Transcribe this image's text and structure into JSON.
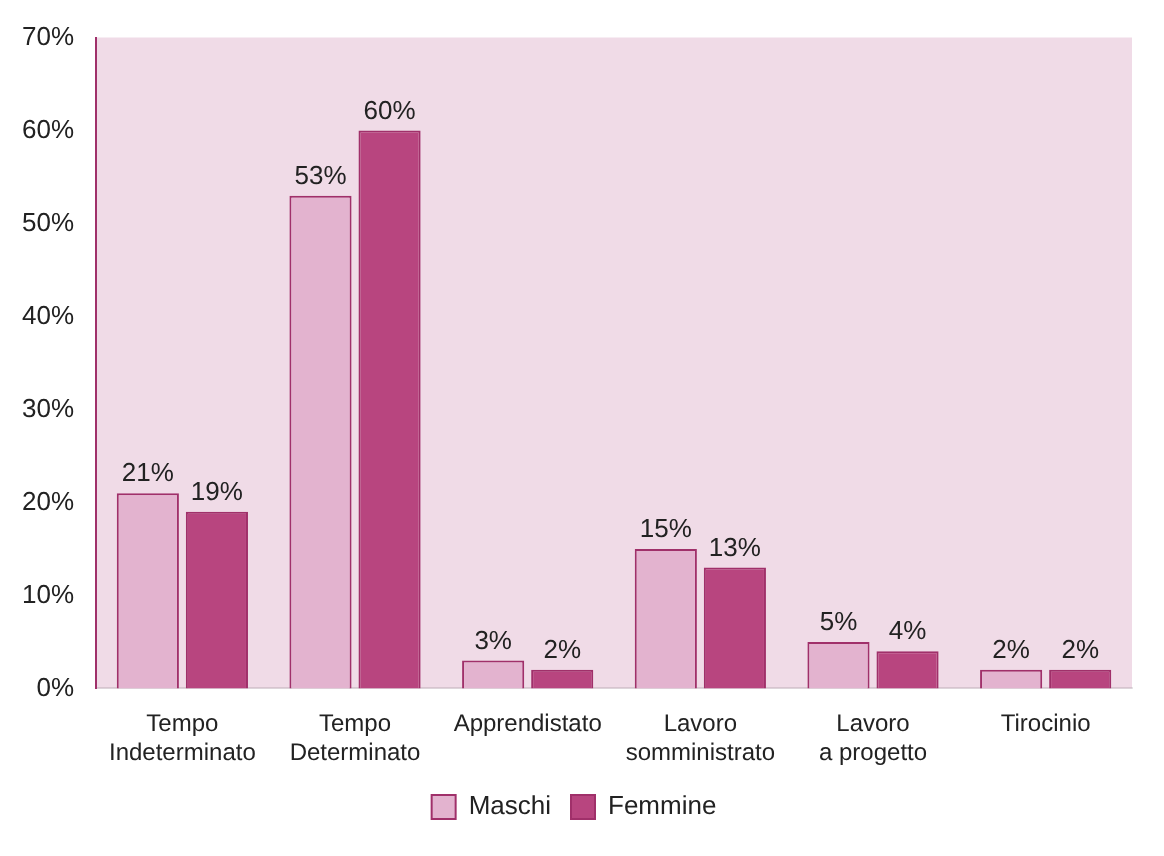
{
  "chart_data": {
    "type": "bar",
    "categories": [
      "Tempo Indeterminato",
      "Tempo Determinato",
      "Apprendistato",
      "Lavoro somministrato",
      "Lavoro a progetto",
      "Tirocinio"
    ],
    "series": [
      {
        "name": "Maschi",
        "color": "#e3b3cf",
        "values": [
          21,
          53,
          3,
          15,
          5,
          2
        ],
        "value_labels": [
          "21%",
          "53%",
          "3%",
          "15%",
          "5%",
          "2%"
        ]
      },
      {
        "name": "Femmine",
        "color": "#b8457f",
        "values": [
          19,
          60,
          2,
          13,
          4,
          2
        ],
        "value_labels": [
          "19%",
          "60%",
          "2%",
          "13%",
          "4%",
          "2%"
        ]
      }
    ],
    "ylim": [
      0,
      70
    ],
    "yticks": [
      {
        "value": 0,
        "label": "0%"
      },
      {
        "value": 10,
        "label": "10%"
      },
      {
        "value": 20,
        "label": "20%"
      },
      {
        "value": 30,
        "label": "30%"
      },
      {
        "value": 40,
        "label": "40%"
      },
      {
        "value": 50,
        "label": "50%"
      },
      {
        "value": 60,
        "label": "60%"
      },
      {
        "value": 70,
        "label": "70%"
      }
    ],
    "grid": false,
    "legend": "bottom"
  }
}
